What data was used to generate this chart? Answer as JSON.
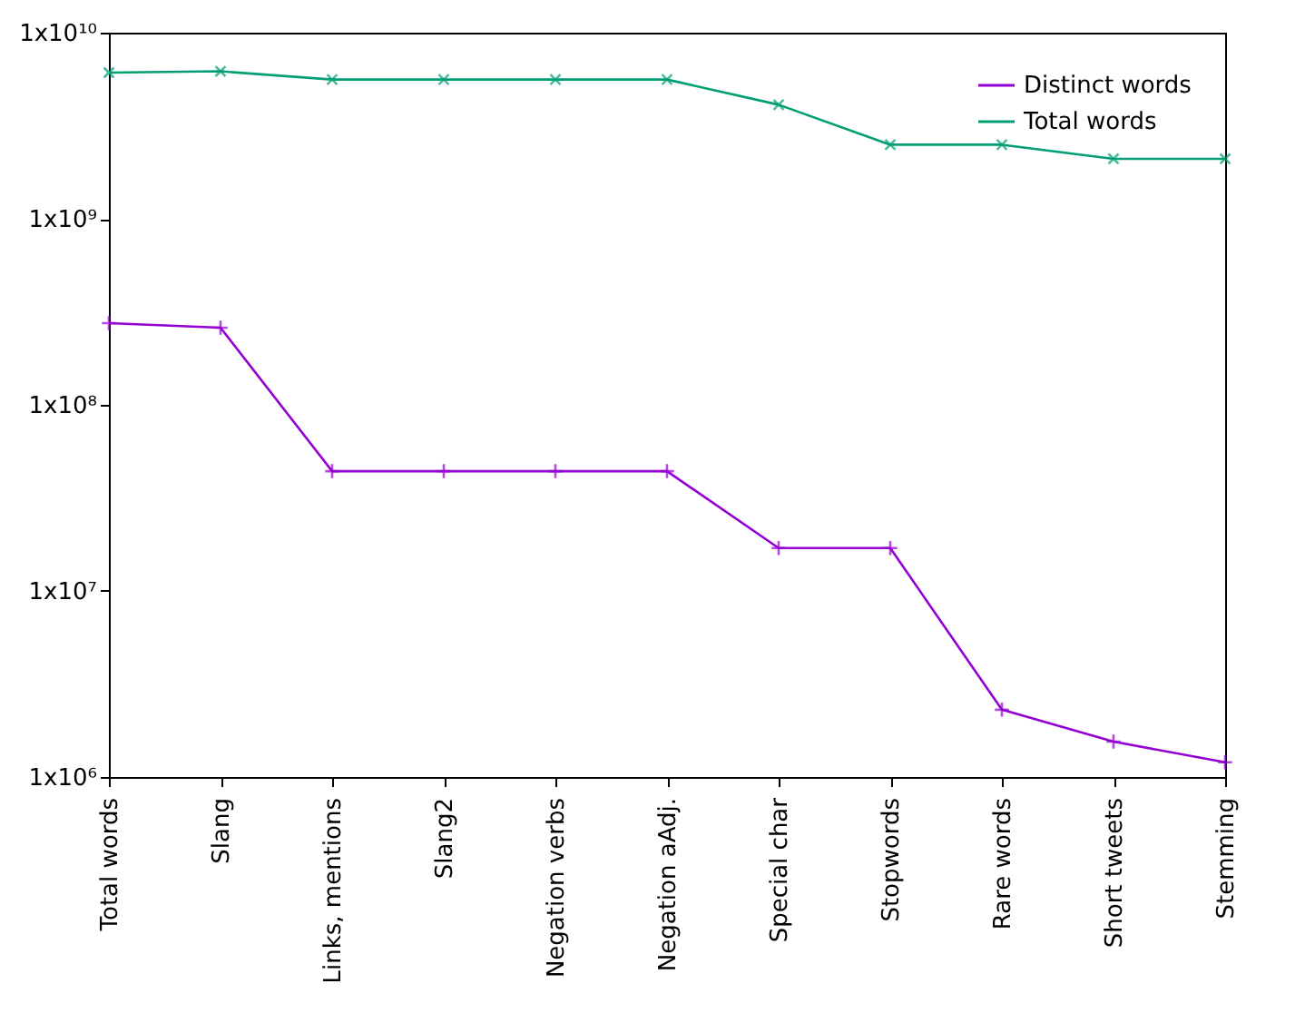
{
  "chart_data": {
    "type": "line",
    "categories": [
      "Total words",
      "Slang",
      "Links, mentions",
      "Slang2",
      "Negation verbs",
      "Negation aAdj.",
      "Special char",
      "Stopwords",
      "Rare words",
      "Short tweets",
      "Stemming"
    ],
    "series": [
      {
        "name": "Distinct words",
        "color": "#9400d3",
        "values": [
          275000000,
          260000000,
          44000000,
          44000000,
          44000000,
          44000000,
          17000000,
          17000000,
          2300000,
          1550000,
          1200000
        ]
      },
      {
        "name": "Total words",
        "color": "#009e73",
        "values": [
          6100000000,
          6200000000,
          5600000000,
          5600000000,
          5600000000,
          5600000000,
          4100000000,
          2500000000,
          2500000000,
          2100000000,
          2100000000
        ]
      }
    ],
    "log": true,
    "ylim": [
      1000000,
      10000000000
    ],
    "yticks": [
      {
        "value": 1000000,
        "label": "1x10⁶"
      },
      {
        "value": 10000000,
        "label": "1x10⁷"
      },
      {
        "value": 100000000,
        "label": "1x10⁸"
      },
      {
        "value": 1000000000,
        "label": "1x10⁹"
      },
      {
        "value": 10000000000,
        "label": "1x10¹⁰"
      }
    ],
    "grid": false,
    "legend": "top right",
    "marker": "cross",
    "line_style": "solid"
  }
}
